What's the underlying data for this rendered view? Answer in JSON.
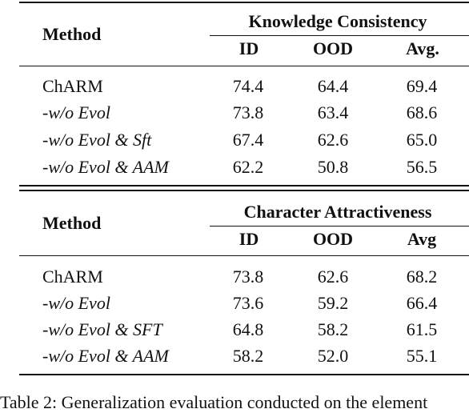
{
  "tables": [
    {
      "method_header": "Method",
      "group_header": "Knowledge Consistency",
      "columns": [
        "ID",
        "OOD",
        "Avg."
      ],
      "rows": [
        {
          "method": "ChARM",
          "values": [
            "74.4",
            "64.4",
            "69.4"
          ]
        },
        {
          "method": "-w/o Evol",
          "values": [
            "73.8",
            "63.4",
            "68.6"
          ]
        },
        {
          "method": "-w/o Evol & Sft",
          "values": [
            "67.4",
            "62.6",
            "65.0"
          ]
        },
        {
          "method": "-w/o Evol & AAM",
          "values": [
            "62.2",
            "50.8",
            "56.5"
          ]
        }
      ]
    },
    {
      "method_header": "Method",
      "group_header": "Character Attractiveness",
      "columns": [
        "ID",
        "OOD",
        "Avg"
      ],
      "rows": [
        {
          "method": "ChARM",
          "values": [
            "73.8",
            "62.6",
            "68.2"
          ]
        },
        {
          "method": "-w/o Evol",
          "values": [
            "73.6",
            "59.2",
            "66.4"
          ]
        },
        {
          "method": "-w/o Evol & SFT",
          "values": [
            "64.8",
            "58.2",
            "61.5"
          ]
        },
        {
          "method": "-w/o Evol & AAM",
          "values": [
            "58.2",
            "52.0",
            "55.1"
          ]
        }
      ]
    }
  ],
  "caption": "Table 2: Generalization evaluation conducted on the element"
}
